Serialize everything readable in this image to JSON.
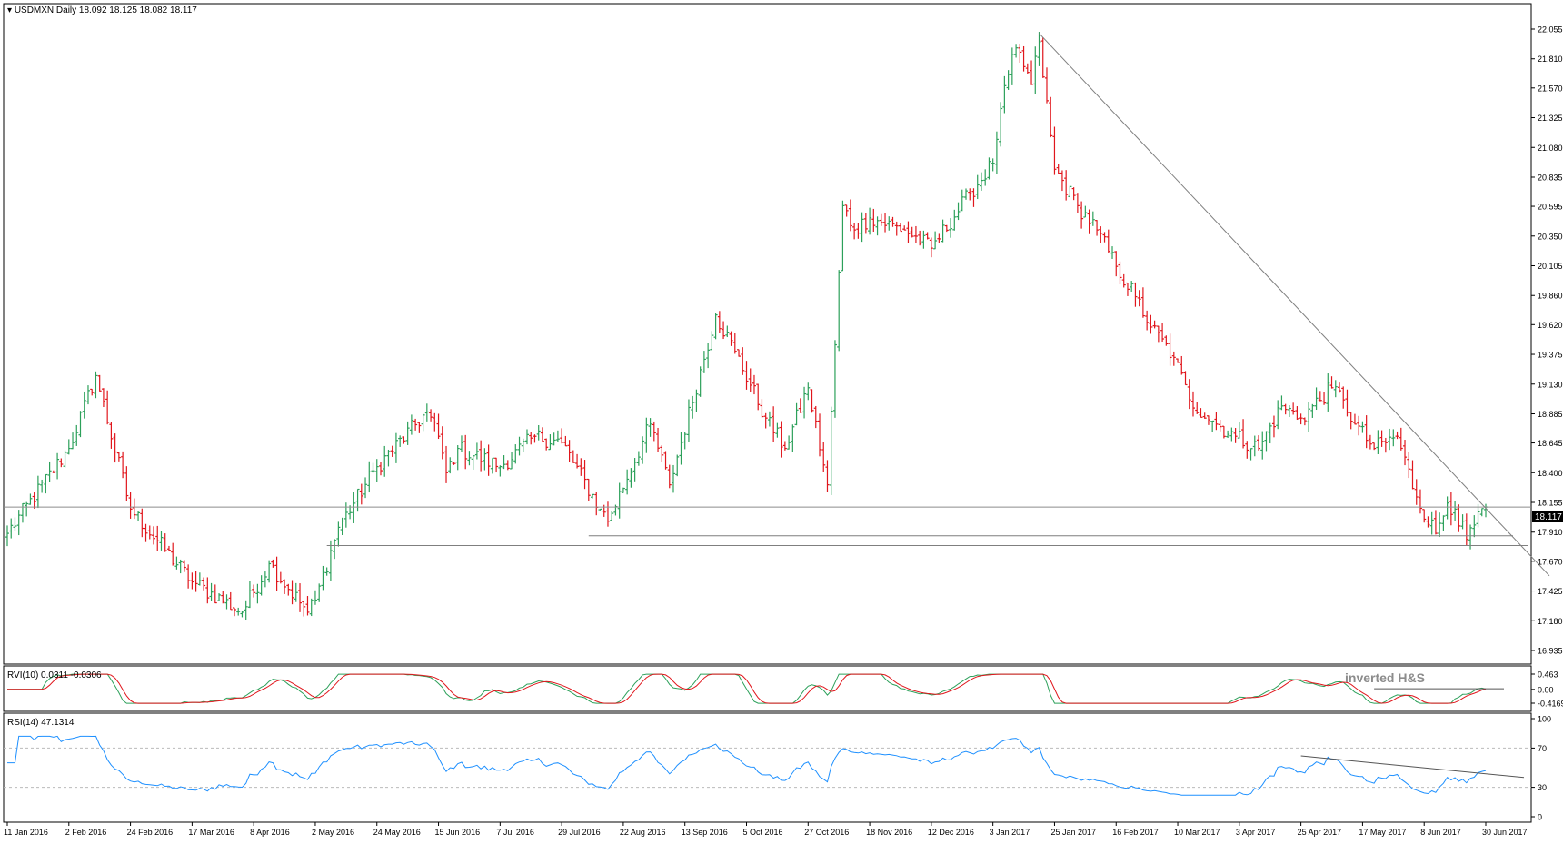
{
  "chart_data": {
    "type": "candlestick",
    "symbol_header": "USDMXN,Daily  18.092 18.125 18.082 18.117",
    "price_label": "18.117",
    "current_price": 18.117,
    "colors": {
      "up": "#2ca05a",
      "down": "#e0161c",
      "rvi_main": "#2ca05a",
      "rvi_signal": "#e0161c",
      "rsi": "#1e90ff",
      "trendline": "#7f7f7f",
      "support": "#7f7f7f",
      "price_tag_bg": "#000000"
    },
    "main_panel": {
      "ylim": [
        16.935,
        22.055
      ],
      "y_ticks": [
        "22.055",
        "21.810",
        "21.570",
        "21.325",
        "21.080",
        "20.835",
        "20.595",
        "20.350",
        "20.105",
        "19.860",
        "19.620",
        "19.375",
        "19.130",
        "18.885",
        "18.645",
        "18.400",
        "18.155",
        "17.910",
        "17.670",
        "17.425",
        "17.180",
        "16.935"
      ],
      "y_tick_values": [
        22.055,
        21.81,
        21.57,
        21.325,
        21.08,
        20.835,
        20.595,
        20.35,
        20.105,
        19.86,
        19.62,
        19.375,
        19.13,
        18.885,
        18.645,
        18.4,
        18.155,
        17.91,
        17.67,
        17.425,
        17.18,
        16.935
      ],
      "support_levels": [
        17.88,
        17.8
      ],
      "trendline": {
        "from": [
          "3 Jan 2017",
          22.02
        ],
        "to": [
          "30 Jun 2017",
          17.55
        ]
      },
      "anchors": [
        [
          "2016-01-11",
          17.9
        ],
        [
          "2016-02-02",
          18.6
        ],
        [
          "2016-02-11",
          19.2
        ],
        [
          "2016-02-24",
          18.1
        ],
        [
          "2016-03-17",
          17.5
        ],
        [
          "2016-04-05",
          17.25
        ],
        [
          "2016-04-14",
          17.65
        ],
        [
          "2016-04-28",
          17.25
        ],
        [
          "2016-05-02",
          17.35
        ],
        [
          "2016-05-10",
          17.95
        ],
        [
          "2016-05-24",
          18.45
        ],
        [
          "2016-06-10",
          18.9
        ],
        [
          "2016-06-15",
          18.7
        ],
        [
          "2016-06-17",
          18.4
        ],
        [
          "2016-06-22",
          18.6
        ],
        [
          "2016-07-07",
          18.45
        ],
        [
          "2016-07-20",
          18.7
        ],
        [
          "2016-07-29",
          18.65
        ],
        [
          "2016-08-12",
          18.1
        ],
        [
          "2016-08-16",
          18.0
        ],
        [
          "2016-08-31",
          18.8
        ],
        [
          "2016-09-07",
          18.3
        ],
        [
          "2016-09-23",
          19.7
        ],
        [
          "2016-09-30",
          19.4
        ],
        [
          "2016-10-12",
          18.85
        ],
        [
          "2016-10-19",
          18.6
        ],
        [
          "2016-10-27",
          19.1
        ],
        [
          "2016-11-03",
          18.3
        ],
        [
          "2016-11-09",
          20.6
        ],
        [
          "2016-11-14",
          20.4
        ],
        [
          "2016-11-18",
          20.5
        ],
        [
          "2016-12-01",
          20.4
        ],
        [
          "2016-12-12",
          20.25
        ],
        [
          "2016-12-26",
          20.7
        ],
        [
          "2017-01-03",
          20.95
        ],
        [
          "2017-01-05",
          21.4
        ],
        [
          "2017-01-11",
          21.9
        ],
        [
          "2017-01-17",
          21.6
        ],
        [
          "2017-01-19",
          21.95
        ],
        [
          "2017-01-25",
          20.9
        ],
        [
          "2017-02-02",
          20.6
        ],
        [
          "2017-02-09",
          20.4
        ],
        [
          "2017-02-16",
          20.1
        ],
        [
          "2017-02-23",
          19.85
        ],
        [
          "2017-03-01",
          19.6
        ],
        [
          "2017-03-09",
          19.35
        ],
        [
          "2017-03-15",
          19.0
        ],
        [
          "2017-03-24",
          18.8
        ],
        [
          "2017-03-31",
          18.7
        ],
        [
          "2017-04-10",
          18.6
        ],
        [
          "2017-04-18",
          18.95
        ],
        [
          "2017-04-25",
          18.85
        ],
        [
          "2017-05-05",
          19.1
        ],
        [
          "2017-05-10",
          19.0
        ],
        [
          "2017-05-15",
          18.8
        ],
        [
          "2017-05-22",
          18.6
        ],
        [
          "2017-05-30",
          18.7
        ],
        [
          "2017-06-06",
          18.2
        ],
        [
          "2017-06-13",
          17.9
        ],
        [
          "2017-06-16",
          18.15
        ],
        [
          "2017-06-20",
          18.1
        ],
        [
          "2017-06-23",
          17.85
        ],
        [
          "2017-06-30",
          18.117
        ]
      ]
    },
    "rvi_panel": {
      "label": "RVI(10) 0.0311 -0.0306",
      "values": [
        0.0311,
        -0.0306
      ],
      "y_ticks": [
        "0.463",
        "0.00",
        "-0.4169"
      ],
      "y_tick_values": [
        0.463,
        0.0,
        -0.4169
      ],
      "annotation": "inverted H&S"
    },
    "rsi_panel": {
      "label": "RSI(14) 47.1314",
      "value": 47.1314,
      "y_ticks": [
        "100",
        "70",
        "30",
        "0"
      ],
      "y_tick_values": [
        100,
        70,
        30,
        0
      ],
      "levels": [
        70,
        30
      ]
    },
    "x_axis": {
      "labels": [
        "11 Jan 2016",
        "2 Feb 2016",
        "24 Feb 2016",
        "17 Mar 2016",
        "8 Apr 2016",
        "2 May 2016",
        "24 May 2016",
        "15 Jun 2016",
        "7 Jul 2016",
        "29 Jul 2016",
        "22 Aug 2016",
        "13 Sep 2016",
        "5 Oct 2016",
        "27 Oct 2016",
        "18 Nov 2016",
        "12 Dec 2016",
        "3 Jan 2017",
        "25 Jan 2017",
        "16 Feb 2017",
        "10 Mar 2017",
        "3 Apr 2017",
        "25 Apr 2017",
        "17 May 2017",
        "8 Jun 2017",
        "30 Jun 2017"
      ],
      "dates": [
        "2016-01-11",
        "2016-02-02",
        "2016-02-24",
        "2016-03-17",
        "2016-04-08",
        "2016-05-02",
        "2016-05-24",
        "2016-06-15",
        "2016-07-07",
        "2016-07-29",
        "2016-08-22",
        "2016-09-13",
        "2016-10-05",
        "2016-10-27",
        "2016-11-18",
        "2016-12-12",
        "2017-01-03",
        "2017-01-25",
        "2017-02-16",
        "2017-03-10",
        "2017-04-03",
        "2017-04-25",
        "2017-05-17",
        "2017-06-08",
        "2017-06-30"
      ]
    }
  }
}
